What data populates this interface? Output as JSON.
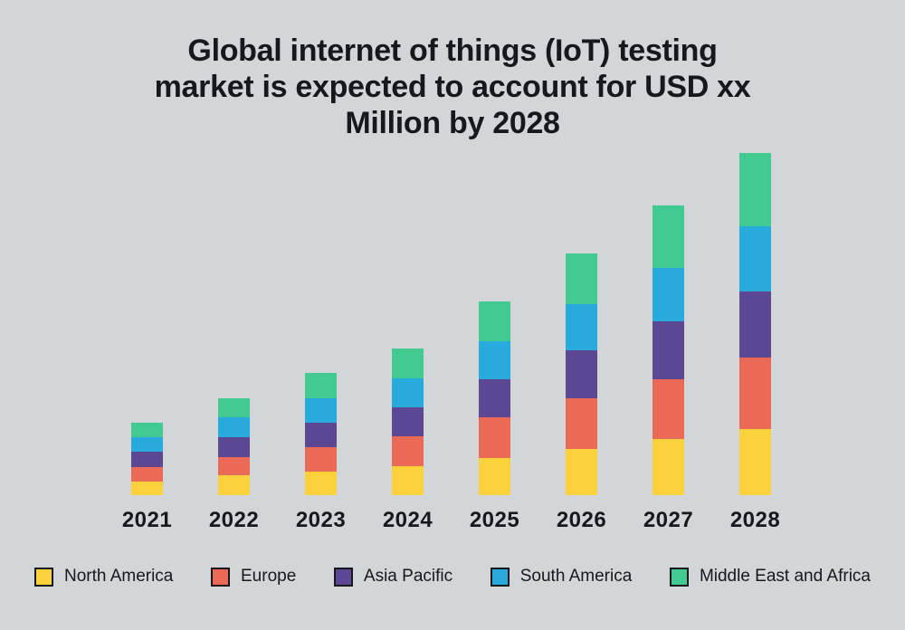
{
  "canvas": {
    "background_color": "#d2d6d9",
    "text_color": "#15181d"
  },
  "title": {
    "lines": [
      "Global internet of things (IoT) testing",
      "market is expected to account for USD xx",
      "Million by 2028"
    ]
  },
  "chart_data": {
    "type": "bar",
    "stacked": true,
    "title": "Global internet of things (IoT) testing market is expected to account for USD xx Million by 2028",
    "xlabel": "",
    "ylabel": "",
    "units": "relative units (no y-axis shown; USD values masked as xx)",
    "grid": false,
    "y_axis_visible": false,
    "legend_position": "bottom",
    "categories": [
      "2021",
      "2022",
      "2023",
      "2024",
      "2025",
      "2026",
      "2027",
      "2028"
    ],
    "series": [
      {
        "name": "North America",
        "color": "#fcd23c",
        "values": [
          15,
          22,
          26,
          32,
          41,
          51,
          62,
          73
        ]
      },
      {
        "name": "Europe",
        "color": "#eb6a57",
        "values": [
          16,
          20,
          27,
          33,
          45,
          56,
          66,
          79
        ]
      },
      {
        "name": "Asia Pacific",
        "color": "#5c4794",
        "values": [
          17,
          22,
          27,
          32,
          42,
          53,
          64,
          73
        ]
      },
      {
        "name": "South America",
        "color": "#29aadd",
        "values": [
          16,
          22,
          27,
          32,
          42,
          51,
          59,
          72
        ]
      },
      {
        "name": "Middle East and Africa",
        "color": "#42ca92",
        "values": [
          16,
          21,
          28,
          33,
          44,
          56,
          69,
          81
        ]
      }
    ],
    "stack_totals": [
      80,
      107,
      135,
      162,
      214,
      267,
      320,
      378
    ]
  }
}
